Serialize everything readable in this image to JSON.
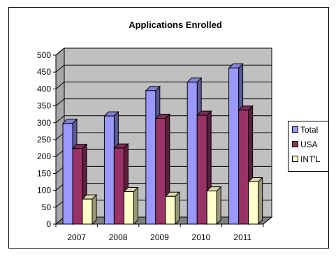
{
  "chart_data": {
    "type": "bar",
    "title": "Applications Enrolled",
    "xlabel": "",
    "ylabel": "",
    "categories": [
      "2007",
      "2008",
      "2009",
      "2010",
      "2011"
    ],
    "yticks": [
      0,
      50,
      100,
      150,
      200,
      250,
      300,
      350,
      400,
      450,
      500
    ],
    "ylim": [
      0,
      500
    ],
    "grid": true,
    "three_d": true,
    "legend_position": "right",
    "series": [
      {
        "name": "Total",
        "color": "#9999FF",
        "values": [
          298,
          320,
          395,
          420,
          462
        ]
      },
      {
        "name": "USA",
        "color": "#993366",
        "values": [
          224,
          225,
          313,
          322,
          337
        ]
      },
      {
        "name": "INT'L",
        "color": "#FFFFCC",
        "values": [
          74,
          96,
          82,
          98,
          125
        ]
      }
    ],
    "colors": {
      "plot_wall": "#C0C0C0",
      "floor": "#808080",
      "gridline": "#000000"
    }
  }
}
